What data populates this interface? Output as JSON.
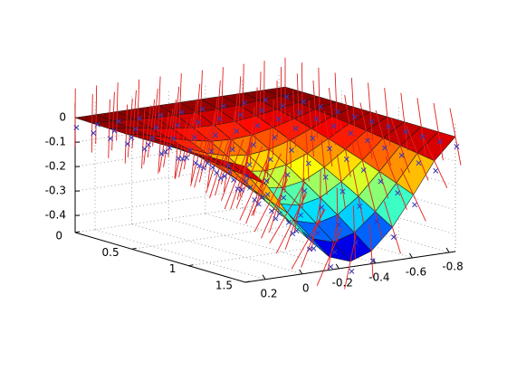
{
  "chart_data": {
    "type": "surface",
    "colormap": "jet",
    "grid": true,
    "surface_edge_color": "#1a1a1a",
    "normal_vectors_color": "#e02020",
    "data_markers_color": "#3838b8",
    "data_marker_symbol": "x",
    "x_axis": {
      "ticks": [
        "0.2",
        "0",
        "-0.2",
        "-0.4",
        "-0.6",
        "-0.8"
      ],
      "range": [
        -0.85,
        0.3
      ]
    },
    "y_axis": {
      "ticks": [
        "0",
        "0.5",
        "1",
        "1.5"
      ],
      "range": [
        0,
        1.5
      ]
    },
    "z_axis": {
      "ticks": [
        "0",
        "-0.1",
        "-0.2",
        "-0.3",
        "-0.4"
      ],
      "range": [
        -0.47,
        0.02
      ]
    },
    "surface": {
      "u_values": [
        0.0,
        0.1,
        0.2,
        0.3,
        0.4,
        0.5,
        0.6,
        0.7,
        0.8,
        0.9,
        1.0
      ],
      "v_values": [
        0.0,
        0.1,
        0.2,
        0.3,
        0.4,
        0.5,
        0.6,
        0.7,
        0.8,
        0.9,
        1.0
      ],
      "z_min": -0.45,
      "z_max": 0.0
    }
  }
}
